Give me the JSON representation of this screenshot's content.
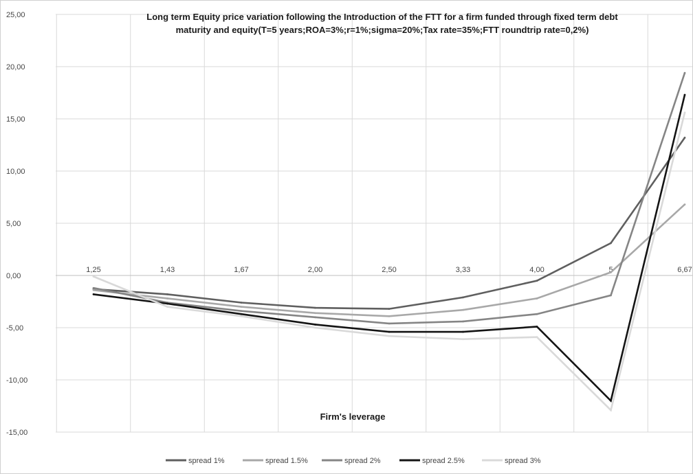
{
  "chart_data": {
    "type": "line",
    "title_lines": [
      "Long term Equity price variation following the Introduction of the FTT for a firm funded through fixed term debt",
      "maturity and equity(T=5 years;ROA=3%;r=1%;sigma=20%;Tax  rate=35%;FTT roundtrip rate=0,2%)"
    ],
    "xlabel": "Firm's leverage",
    "ylabel": "",
    "categories": [
      "1,25",
      "1,43",
      "1,67",
      "2,00",
      "2,50",
      "3,33",
      "4,00",
      "5",
      "6,67"
    ],
    "y_ticks": [
      "25,00",
      "20,00",
      "15,00",
      "10,00",
      "5,00",
      "0,00",
      "-5,00",
      "-10,00",
      "-15,00"
    ],
    "ylim": [
      -15,
      25
    ],
    "grid": "vertical and horizontal",
    "legend_position": "bottom",
    "series": [
      {
        "name": "spread 1%",
        "color": "#5f5f5f",
        "values": [
          -1.3,
          -1.8,
          -2.6,
          -3.1,
          -3.2,
          -2.1,
          -0.5,
          3.1,
          13.2
        ]
      },
      {
        "name": "spread  1.5%",
        "color": "#a8a8a8",
        "values": [
          -1.4,
          -2.2,
          -3.0,
          -3.6,
          -3.9,
          -3.3,
          -2.2,
          0.3,
          6.8
        ]
      },
      {
        "name": "spread 2%",
        "color": "#858585",
        "values": [
          -1.2,
          -2.6,
          -3.4,
          -4.0,
          -4.6,
          -4.4,
          -3.7,
          -1.9,
          19.4
        ]
      },
      {
        "name": "spread 2.5%",
        "color": "#141414",
        "values": [
          -1.8,
          -2.7,
          -3.7,
          -4.7,
          -5.4,
          -5.4,
          -4.9,
          -12.0,
          17.3
        ]
      },
      {
        "name": "spread 3%",
        "color": "#d9d9d9",
        "values": [
          -0.1,
          -3.0,
          -3.9,
          -5.0,
          -5.8,
          -6.1,
          -5.9,
          -12.9,
          15.6
        ]
      }
    ]
  }
}
